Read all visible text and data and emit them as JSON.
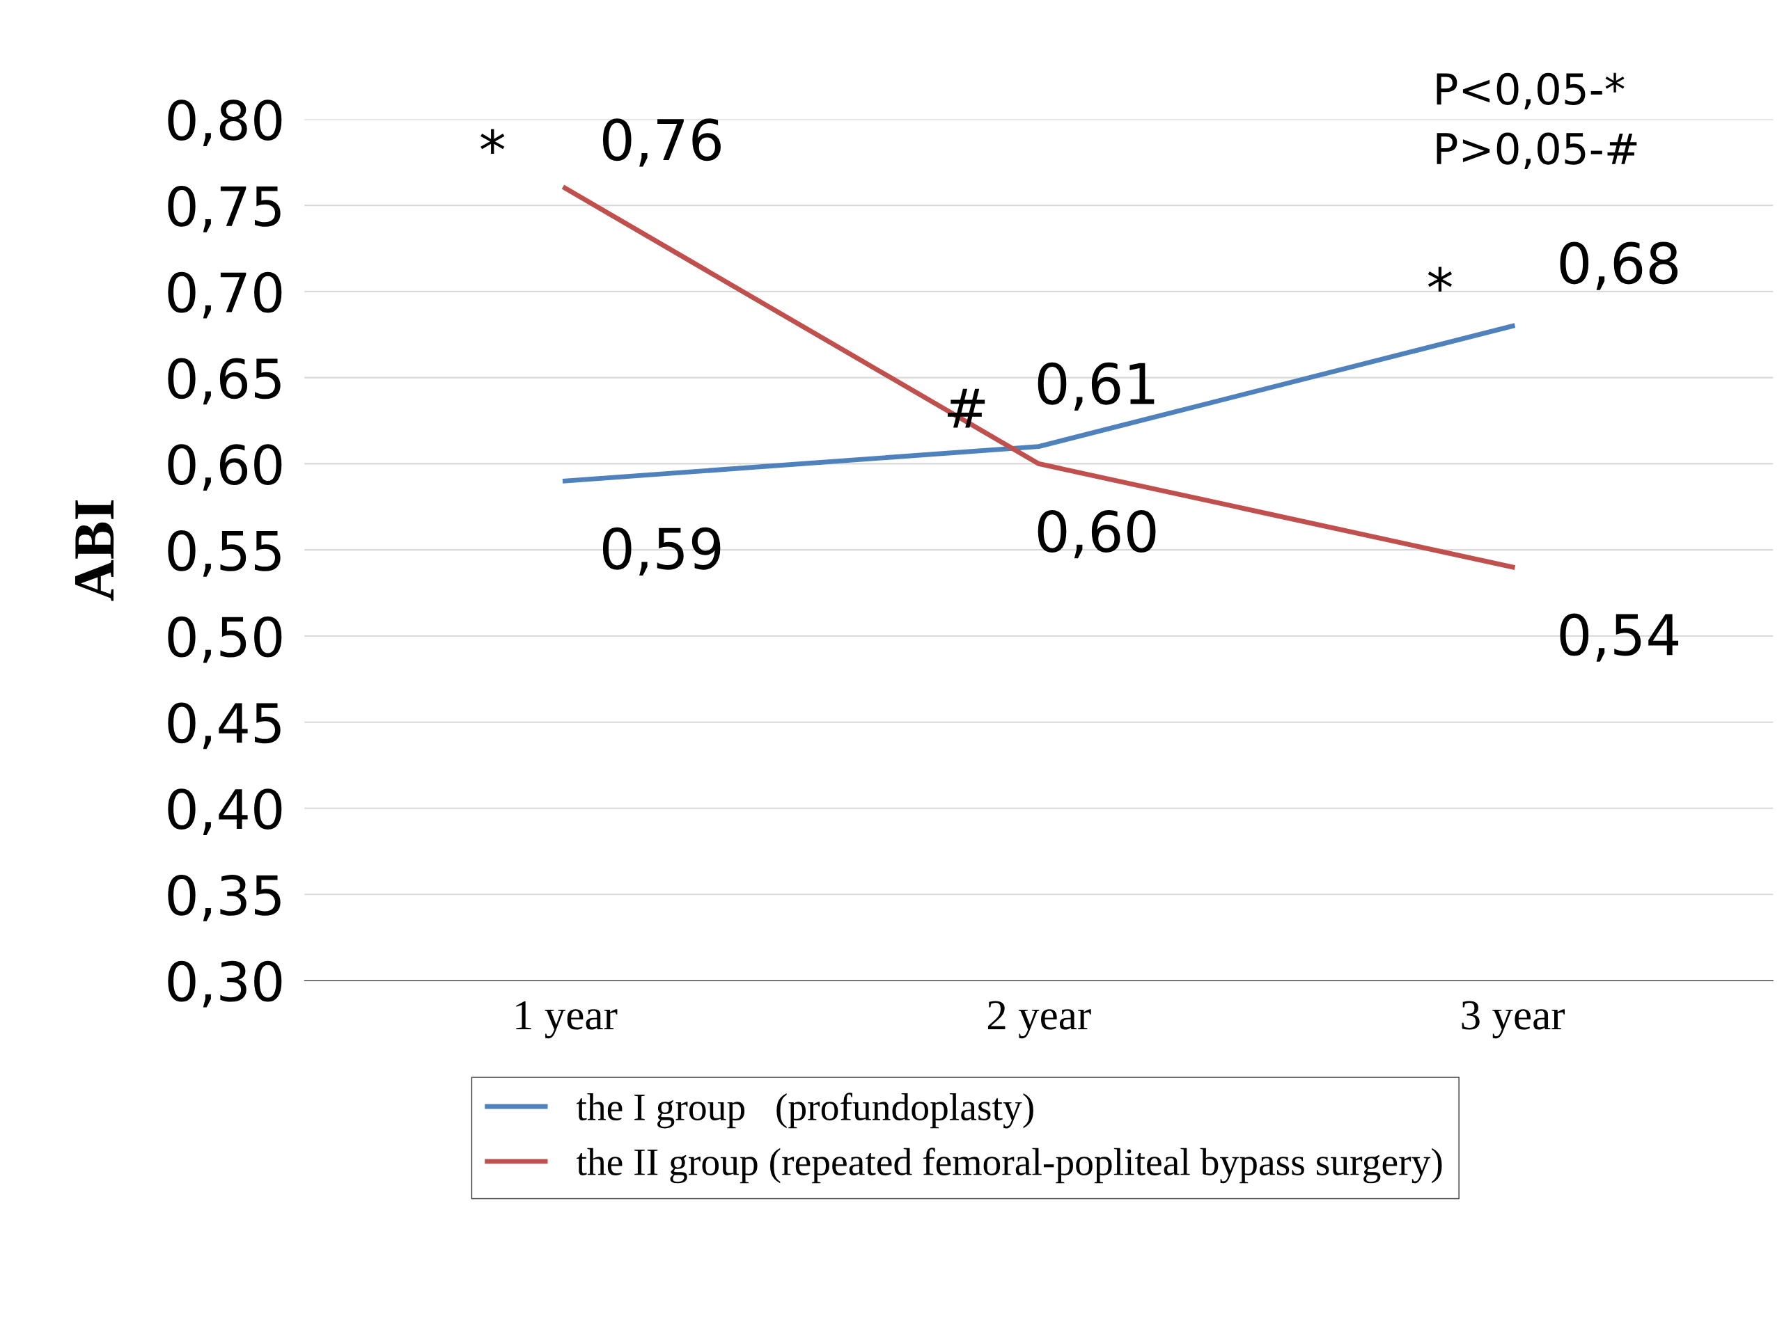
{
  "chart_data": {
    "type": "line",
    "ylabel": "ABI",
    "categories": [
      "1 year",
      "2 year",
      "3 year"
    ],
    "series": [
      {
        "name": "the I group   (profundoplasty)",
        "color": "#4f81bd",
        "values": [
          0.59,
          0.61,
          0.68
        ],
        "value_labels": [
          "0,59",
          "0,61",
          "0,68"
        ]
      },
      {
        "name": "the II group (repeated femoral-popliteal bypass surgery)",
        "color": "#c0504d",
        "values": [
          0.76,
          0.6,
          0.54
        ],
        "value_labels": [
          "0,76",
          "0,60",
          "0,54"
        ]
      }
    ],
    "ylim": [
      0.3,
      0.8
    ],
    "yticks": [
      {
        "value": 0.3,
        "label": "0,30"
      },
      {
        "value": 0.35,
        "label": "0,35"
      },
      {
        "value": 0.4,
        "label": "0,40"
      },
      {
        "value": 0.45,
        "label": "0,45"
      },
      {
        "value": 0.5,
        "label": "0,50"
      },
      {
        "value": 0.55,
        "label": "0,55"
      },
      {
        "value": 0.6,
        "label": "0,60"
      },
      {
        "value": 0.65,
        "label": "0,65"
      },
      {
        "value": 0.7,
        "label": "0,70"
      },
      {
        "value": 0.75,
        "label": "0,75"
      },
      {
        "value": 0.8,
        "label": "0,80"
      }
    ],
    "grid": "y",
    "legend": "bottom",
    "marker": "none",
    "line_style": "solid",
    "annotations": [
      {
        "text": "*",
        "x": "1 year",
        "y": 0.76
      },
      {
        "text": "#",
        "x": "2 year",
        "y": 0.61
      },
      {
        "text": "*",
        "x": "3 year",
        "y": 0.68
      },
      "P<0,05-*",
      "P>0,05-#"
    ]
  }
}
